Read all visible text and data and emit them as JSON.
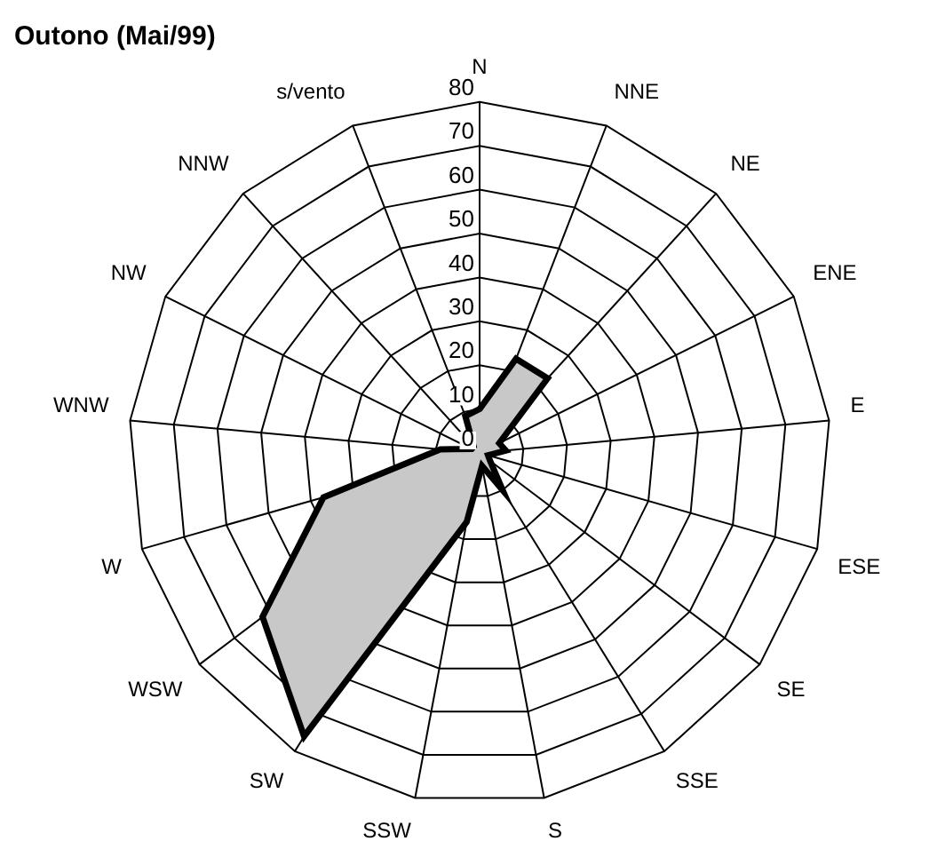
{
  "chart_data": {
    "type": "radar",
    "title": "Outono (Mai/99)",
    "categories": [
      "N",
      "NNE",
      "NE",
      "ENE",
      "E",
      "ESE",
      "SE",
      "SSE",
      "S",
      "SSW",
      "SW",
      "WSW",
      "W",
      "WNW",
      "NW",
      "NNW",
      "s/vento"
    ],
    "series": [
      {
        "color": "#c8c8c8",
        "values": [
          10,
          23,
          23,
          5,
          6,
          2,
          3,
          10,
          3,
          16,
          76,
          62,
          37,
          9,
          2,
          2,
          9
        ]
      }
    ],
    "ylim": [
      0,
      80
    ],
    "yticks": [
      0,
      10,
      20,
      30,
      40,
      50,
      60,
      70,
      80
    ],
    "grid": true,
    "legend": false,
    "marker": "none"
  }
}
